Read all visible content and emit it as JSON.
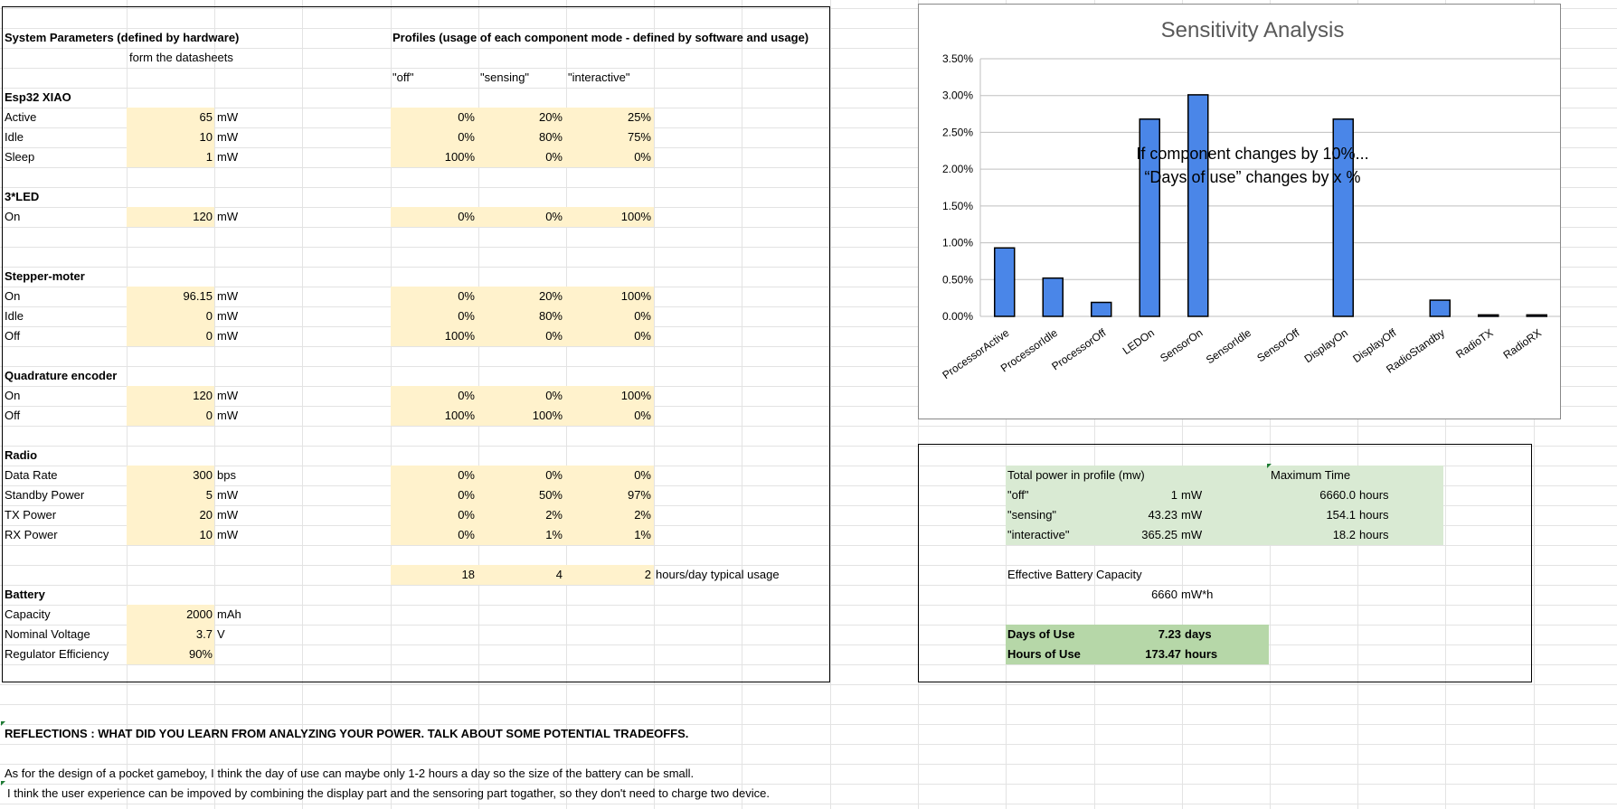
{
  "left": {
    "title": "System Parameters (defined by hardware)",
    "subtitle": "form the datasheets",
    "sections": [
      {
        "name": "Esp32 XIAO",
        "rows": [
          {
            "label": "Active",
            "value": "65",
            "unit": "mW"
          },
          {
            "label": "Idle",
            "value": "10",
            "unit": "mW"
          },
          {
            "label": "Sleep",
            "value": "1",
            "unit": "mW"
          }
        ]
      },
      {
        "name": "3*LED",
        "rows": [
          {
            "label": "On",
            "value": "120",
            "unit": "mW"
          }
        ]
      },
      {
        "name": "Stepper-moter",
        "rows": [
          {
            "label": "On",
            "value": "96.15",
            "unit": "mW"
          },
          {
            "label": "Idle",
            "value": "0",
            "unit": "mW"
          },
          {
            "label": "Off",
            "value": "0",
            "unit": "mW"
          }
        ]
      },
      {
        "name": "Quadrature encoder",
        "rows": [
          {
            "label": "On",
            "value": "120",
            "unit": "mW"
          },
          {
            "label": "Off",
            "value": "0",
            "unit": "mW"
          }
        ]
      },
      {
        "name": "Radio",
        "rows": [
          {
            "label": "Data Rate",
            "value": "300",
            "unit": "bps"
          },
          {
            "label": "Standby Power",
            "value": "5",
            "unit": "mW"
          },
          {
            "label": "TX Power",
            "value": "20",
            "unit": "mW"
          },
          {
            "label": "RX Power",
            "value": "10",
            "unit": "mW"
          }
        ]
      },
      {
        "name": "Battery",
        "rows": [
          {
            "label": "Capacity",
            "value": "2000",
            "unit": "mAh"
          },
          {
            "label": "Nominal Voltage",
            "value": "3.7",
            "unit": "V"
          },
          {
            "label": "Regulator Efficiency",
            "value": "90%",
            "unit": ""
          }
        ]
      }
    ]
  },
  "profiles": {
    "title": "Profiles (usage of each component mode - defined by software and usage)",
    "headers": [
      "\"off\"",
      "\"sensing\"",
      "\"interactive\""
    ],
    "esp": [
      [
        "0%",
        "20%",
        "25%"
      ],
      [
        "0%",
        "80%",
        "75%"
      ],
      [
        "100%",
        "0%",
        "0%"
      ]
    ],
    "led": [
      [
        "0%",
        "0%",
        "100%"
      ]
    ],
    "stepper": [
      [
        "0%",
        "20%",
        "100%"
      ],
      [
        "0%",
        "80%",
        "0%"
      ],
      [
        "100%",
        "0%",
        "0%"
      ]
    ],
    "encoder": [
      [
        "0%",
        "0%",
        "100%"
      ],
      [
        "100%",
        "100%",
        "0%"
      ]
    ],
    "radio": [
      [
        "0%",
        "0%",
        "0%"
      ],
      [
        "0%",
        "50%",
        "97%"
      ],
      [
        "0%",
        "2%",
        "2%"
      ],
      [
        "0%",
        "1%",
        "1%"
      ]
    ],
    "hours": [
      "18",
      "4",
      "2"
    ],
    "hours_note": "hours/day typical usage"
  },
  "results": {
    "total_power_label": "Total power in profile (mw)",
    "max_time_label": "Maximum Time",
    "rows": [
      {
        "name": "\"off\"",
        "power": "1",
        "power_unit": "mW",
        "time": "6660.0",
        "time_unit": "hours"
      },
      {
        "name": "\"sensing\"",
        "power": "43.23",
        "power_unit": "mW",
        "time": "154.1",
        "time_unit": "hours"
      },
      {
        "name": "\"interactive\"",
        "power": "365.25",
        "power_unit": "mW",
        "time": "18.2",
        "time_unit": "hours"
      }
    ],
    "eff_label": "Effective Battery Capacity",
    "eff_value": "6660",
    "eff_unit": "mW*h",
    "days_label": "Days of Use",
    "days_value": "7.23",
    "days_unit": "days",
    "hours_label": "Hours of Use",
    "hours_value": "173.47",
    "hours_unit": "hours"
  },
  "reflections": {
    "title": "REFLECTIONS : WHAT DID YOU LEARN FROM ANALYZING YOUR POWER.  TALK ABOUT SOME POTENTIAL TRADEOFFS.",
    "line1": "As for the design of a pocket gameboy, I think the day of use can maybe only 1-2 hours a day so the size of the battery can be small.",
    "line2": "I think the user experience can be impoved by combining the display part and the sensoring part togather, so they don't need to charge two device."
  },
  "chart_data": {
    "type": "bar",
    "title": "Sensitivity Analysis",
    "categories": [
      "ProcessorActive",
      "ProcessorIdle",
      "ProcessorOff",
      "LEDOn",
      "SensorOn",
      "SensorIdle",
      "SensorOff",
      "DisplayOn",
      "DisplayOff",
      "RadioStandby",
      "RadioTX",
      "RadioRX"
    ],
    "values": [
      0.0093,
      0.0052,
      0.0019,
      0.0268,
      0.0301,
      0,
      0,
      0.0268,
      0,
      0.0022,
      0.0002,
      0.0002
    ],
    "ylim": [
      0,
      0.035
    ],
    "yticks": [
      "0.00%",
      "0.50%",
      "1.00%",
      "1.50%",
      "2.00%",
      "2.50%",
      "3.00%",
      "3.50%"
    ],
    "annotation_line1": "If component changes by 10%...",
    "annotation_line2": "“Days of use” changes by x %",
    "bar_color": "#4a86e8",
    "grid": true
  }
}
